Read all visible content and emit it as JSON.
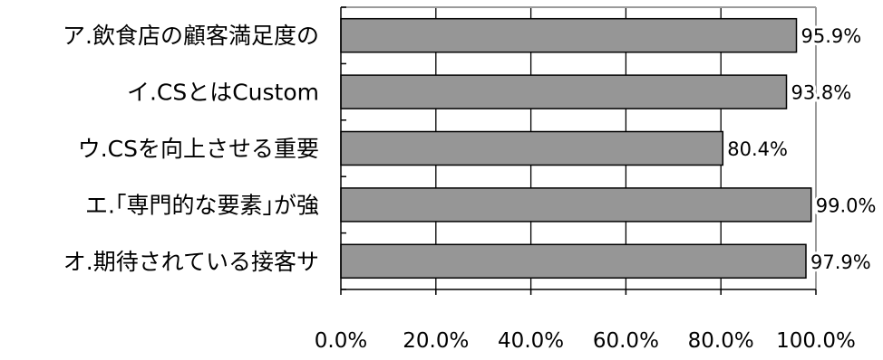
{
  "chart_data": {
    "type": "bar",
    "orientation": "horizontal",
    "categories": [
      "ア.飲食店の顧客満足度の",
      "イ.CSとはCustom",
      "ウ.CSを向上させる重要",
      "エ.｢専門的な要素｣が強",
      "オ.期待されている接客サ"
    ],
    "values": [
      95.9,
      93.8,
      80.4,
      99.0,
      97.9
    ],
    "data_labels": [
      "95.9%",
      "93.8%",
      "80.4%",
      "99.0%",
      "97.9%"
    ],
    "xlim": [
      0,
      100
    ],
    "ticks": [
      0,
      20,
      40,
      60,
      80,
      100
    ],
    "tick_labels": [
      "0.0%",
      "20.0%",
      "40.0%",
      "60.0%",
      "80.0%",
      "100.0%"
    ],
    "grid": true,
    "legend": "none",
    "colors": {
      "bar_fill": "#969696",
      "bar_stroke": "#000000",
      "grid": "#000000",
      "frame": "#9a9a9a"
    }
  }
}
